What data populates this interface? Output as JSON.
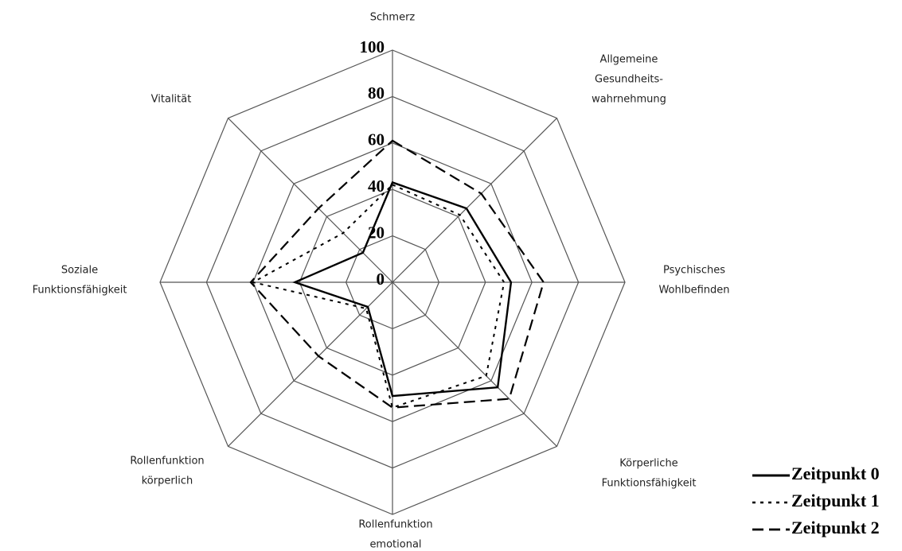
{
  "chart_data": {
    "type": "radar",
    "categories": [
      [
        "Schmerz"
      ],
      [
        "Allgemeine",
        "Gesundheits-",
        "wahrnehmung"
      ],
      [
        "Psychisches",
        "Wohlbefinden"
      ],
      [
        "Körperliche",
        "Funktionsfähigkeit"
      ],
      [
        "Rollenfunktion",
        "emotional"
      ],
      [
        "Rollenfunktion",
        "körperlich"
      ],
      [
        "Soziale",
        "Funktionsfähigkeit"
      ],
      [
        "Vitalität"
      ]
    ],
    "series": [
      {
        "name": "Zeitpunkt 0",
        "color": "#000000",
        "dash": "solid",
        "values": [
          43,
          45,
          51,
          64,
          49,
          15,
          42,
          18
        ]
      },
      {
        "name": "Zeitpunkt 1",
        "color": "#000000",
        "dash": "dotted",
        "values": [
          42,
          41,
          48,
          57,
          54,
          16,
          60,
          30
        ]
      },
      {
        "name": "Zeitpunkt 2",
        "color": "#000000",
        "dash": "dashed",
        "values": [
          61,
          54,
          65,
          71,
          54,
          45,
          61,
          45
        ]
      }
    ],
    "ylim": [
      0,
      100
    ],
    "yticks": [
      0,
      20,
      40,
      60,
      80,
      100
    ],
    "legend": "bottom-right"
  }
}
